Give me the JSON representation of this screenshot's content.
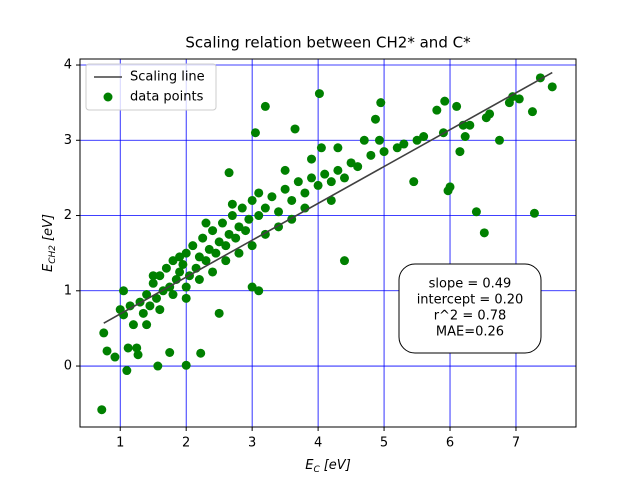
{
  "chart_data": {
    "type": "scatter",
    "title": "Scaling relation between CH2* and C*",
    "x_label": {
      "symbol": "E",
      "subscript": "C",
      "unit": "[eV]"
    },
    "y_label": {
      "symbol": "E",
      "subscript": "CH2",
      "unit": "[eV]"
    },
    "xlim": [
      0.39,
      7.91
    ],
    "ylim": [
      -0.81,
      4.08
    ],
    "xticks": [
      1,
      2,
      3,
      4,
      5,
      6,
      7
    ],
    "yticks": [
      0,
      1,
      2,
      3,
      4
    ],
    "grid": true,
    "grid_color": "#0000ff",
    "legend": "upper left",
    "series": [
      {
        "name": "Scaling line",
        "kind": "line",
        "color": "#404040",
        "x": [
          0.75,
          7.55
        ],
        "values": [
          0.57,
          3.9
        ]
      },
      {
        "name": "data points",
        "kind": "scatter",
        "color": "#008000",
        "x": [
          0.72,
          0.75,
          0.8,
          0.92,
          1.1,
          1.12,
          1.25,
          1.27,
          1.57,
          1.75,
          2.0,
          2.22,
          1.05,
          3.2,
          3.05,
          3.65,
          4.02,
          4.05,
          4.4,
          4.87,
          4.93,
          5.45,
          5.92,
          6.0,
          5.97,
          6.1,
          6.15,
          6.23,
          6.4,
          6.52,
          6.75,
          7.28,
          7.25,
          7.37,
          7.55,
          6.95,
          7.05,
          6.55,
          6.3,
          5.8,
          5.5,
          5.2,
          4.95,
          4.7,
          2.65,
          2.0,
          2.5,
          3.1,
          3.0,
          1.0,
          1.05,
          1.15,
          1.2,
          1.3,
          1.35,
          1.4,
          1.45,
          1.5,
          1.55,
          1.6,
          1.65,
          1.7,
          1.75,
          1.8,
          1.85,
          1.9,
          1.95,
          2.0,
          2.05,
          2.1,
          2.15,
          2.2,
          2.25,
          2.3,
          2.35,
          2.4,
          2.45,
          2.5,
          2.55,
          2.6,
          2.65,
          2.7,
          2.75,
          2.8,
          2.85,
          2.9,
          2.95,
          3.0,
          3.1,
          3.2,
          3.3,
          3.4,
          3.5,
          3.6,
          3.7,
          3.8,
          3.9,
          4.0,
          4.1,
          4.2,
          4.3,
          4.4,
          4.5,
          4.6,
          4.8,
          5.0,
          5.3,
          5.6,
          5.9,
          6.2,
          6.6,
          6.9,
          1.4,
          1.6,
          1.8,
          2.0,
          2.2,
          2.4,
          2.6,
          2.8,
          3.0,
          3.2,
          3.4,
          3.6,
          3.8,
          4.2,
          1.5,
          1.9,
          2.3,
          2.7,
          3.1,
          3.5,
          3.9,
          4.3
        ],
        "values": [
          -0.58,
          0.44,
          0.2,
          0.12,
          -0.06,
          0.24,
          0.24,
          0.15,
          0.0,
          0.18,
          0.01,
          0.17,
          1.0,
          3.45,
          3.1,
          3.15,
          3.62,
          2.9,
          1.4,
          3.28,
          3.0,
          2.45,
          3.52,
          2.38,
          2.33,
          3.45,
          2.85,
          3.05,
          2.05,
          1.77,
          3.0,
          2.03,
          3.38,
          3.83,
          3.71,
          3.58,
          3.55,
          3.3,
          3.2,
          3.4,
          3.0,
          2.9,
          3.5,
          3.0,
          2.57,
          0.9,
          0.7,
          1.0,
          1.05,
          0.75,
          0.68,
          0.8,
          0.55,
          0.85,
          0.7,
          0.95,
          0.8,
          1.1,
          0.9,
          1.2,
          1.0,
          1.3,
          1.05,
          1.4,
          1.15,
          1.25,
          1.35,
          1.5,
          1.2,
          1.6,
          1.3,
          1.45,
          1.7,
          1.4,
          1.55,
          1.8,
          1.5,
          1.65,
          1.9,
          1.6,
          1.75,
          2.0,
          1.7,
          1.85,
          2.1,
          1.8,
          1.95,
          2.2,
          2.0,
          2.1,
          2.25,
          2.05,
          2.35,
          2.2,
          2.45,
          2.3,
          2.5,
          2.4,
          2.55,
          2.45,
          2.6,
          2.5,
          2.7,
          2.65,
          2.8,
          2.85,
          2.95,
          3.05,
          3.1,
          3.2,
          3.35,
          3.5,
          0.55,
          0.75,
          0.95,
          1.05,
          1.15,
          1.25,
          1.4,
          1.5,
          1.6,
          1.75,
          1.85,
          1.95,
          2.1,
          2.2,
          1.2,
          1.45,
          1.9,
          2.15,
          2.3,
          2.6,
          2.75,
          2.9
        ]
      }
    ],
    "annotation": [
      "slope = 0.49",
      "intercept = 0.20",
      "r^2 = 0.78",
      "MAE=0.26"
    ]
  }
}
